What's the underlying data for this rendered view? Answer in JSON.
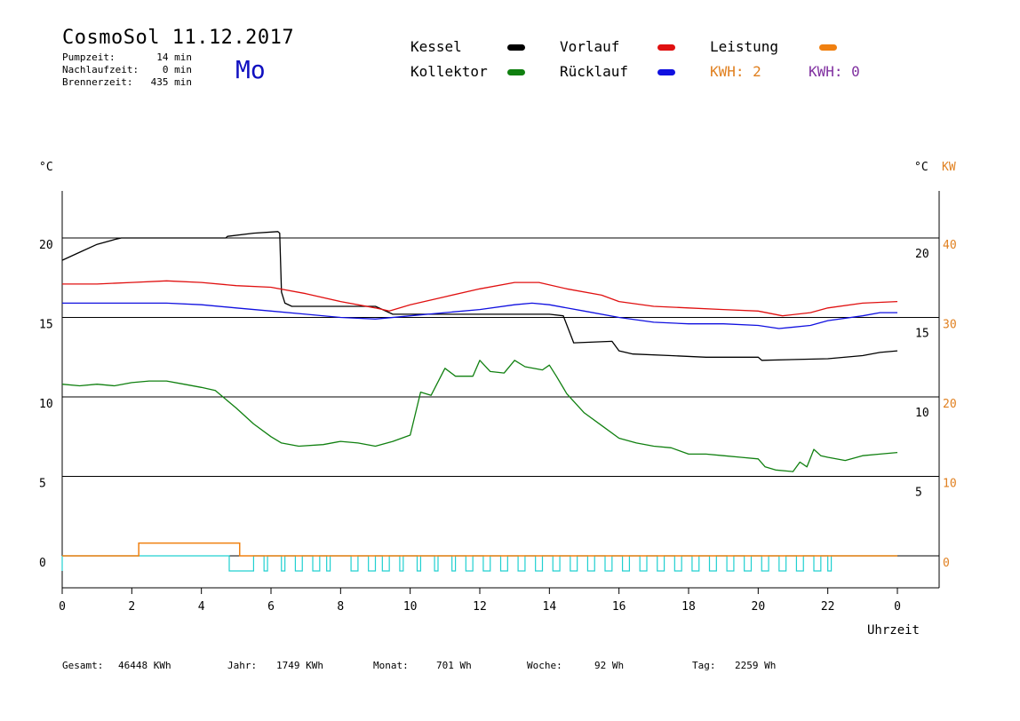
{
  "header": {
    "title": "CosmoSol 11.12.2017",
    "day": "Mo",
    "stats": [
      {
        "label": "Pumpzeit:",
        "value": "14 min"
      },
      {
        "label": "Nachlaufzeit:",
        "value": "0 min"
      },
      {
        "label": "Brennerzeit:",
        "value": "435 min"
      }
    ]
  },
  "legend": {
    "items": [
      {
        "label": "Kessel",
        "color": "#000000"
      },
      {
        "label": "Vorlauf",
        "color": "#e01010"
      },
      {
        "label": "Leistung",
        "color": "#f08010"
      },
      {
        "label": "Kollektor",
        "color": "#108010"
      },
      {
        "label": "Rücklauf",
        "color": "#1010e0"
      }
    ],
    "kwh_orange": "KWH: 2",
    "kwh_purple": "KWH: 0",
    "kwh_orange_color": "#e08020",
    "kwh_purple_color": "#8030a0"
  },
  "footer": {
    "gesamt_label": "Gesamt:",
    "gesamt_value": "46448 KWh",
    "jahr_label": "Jahr:",
    "jahr_value": "1749 KWh",
    "monat_label": "Monat:",
    "monat_value": "701 Wh",
    "woche_label": "Woche:",
    "woche_value": "92 Wh",
    "tag_label": "Tag:",
    "tag_value": "2259 Wh"
  },
  "chart_data": {
    "type": "line",
    "xlabel": "Uhrzeit",
    "left_unit": "°C",
    "right_unit_c": "°C",
    "right_unit_kw": "KW",
    "x_ticks": [
      "0",
      "2",
      "4",
      "6",
      "8",
      "10",
      "12",
      "14",
      "16",
      "18",
      "20",
      "22",
      "0"
    ],
    "xlim": [
      0,
      24
    ],
    "left_axis": {
      "ylim": [
        0,
        22
      ],
      "ticks": [
        0,
        5,
        10,
        15,
        20
      ]
    },
    "right_axis_c": {
      "ticks": [
        5,
        10,
        15,
        20
      ]
    },
    "right_axis_kw": {
      "ticks": [
        0,
        10,
        20,
        30,
        40
      ]
    },
    "grid_lines_y": [
      5,
      10,
      15,
      20
    ],
    "series": [
      {
        "name": "Kessel",
        "color": "#000000",
        "points": [
          [
            0,
            18.6
          ],
          [
            0.5,
            19.1
          ],
          [
            1,
            19.6
          ],
          [
            1.5,
            19.9
          ],
          [
            1.7,
            20
          ],
          [
            4.7,
            20
          ],
          [
            4.75,
            20.1
          ],
          [
            5.5,
            20.3
          ],
          [
            6.2,
            20.4
          ],
          [
            6.25,
            20.3
          ],
          [
            6.3,
            16.6
          ],
          [
            6.4,
            15.9
          ],
          [
            6.6,
            15.7
          ],
          [
            9,
            15.7
          ],
          [
            9.5,
            15.2
          ],
          [
            14,
            15.2
          ],
          [
            14.4,
            15.1
          ],
          [
            14.7,
            13.4
          ],
          [
            15.8,
            13.5
          ],
          [
            16,
            12.9
          ],
          [
            16.4,
            12.7
          ],
          [
            17.5,
            12.6
          ],
          [
            18.5,
            12.5
          ],
          [
            20,
            12.5
          ],
          [
            20.1,
            12.3
          ],
          [
            22,
            12.4
          ],
          [
            23,
            12.6
          ],
          [
            23.5,
            12.8
          ],
          [
            24,
            12.9
          ]
        ]
      },
      {
        "name": "Vorlauf",
        "color": "#e01010",
        "points": [
          [
            0,
            17.1
          ],
          [
            1,
            17.1
          ],
          [
            2,
            17.2
          ],
          [
            3,
            17.3
          ],
          [
            4,
            17.2
          ],
          [
            5,
            17
          ],
          [
            6,
            16.9
          ],
          [
            7,
            16.5
          ],
          [
            8,
            16
          ],
          [
            9,
            15.6
          ],
          [
            9.4,
            15.4
          ],
          [
            10,
            15.8
          ],
          [
            11,
            16.3
          ],
          [
            12,
            16.8
          ],
          [
            13,
            17.2
          ],
          [
            13.7,
            17.2
          ],
          [
            14.5,
            16.8
          ],
          [
            15.5,
            16.4
          ],
          [
            16,
            16
          ],
          [
            17,
            15.7
          ],
          [
            18,
            15.6
          ],
          [
            19,
            15.5
          ],
          [
            20,
            15.4
          ],
          [
            20.7,
            15.1
          ],
          [
            21.5,
            15.3
          ],
          [
            22,
            15.6
          ],
          [
            23,
            15.9
          ],
          [
            24,
            16
          ]
        ]
      },
      {
        "name": "Rücklauf",
        "color": "#1010e0",
        "points": [
          [
            0,
            15.9
          ],
          [
            1,
            15.9
          ],
          [
            2,
            15.9
          ],
          [
            3,
            15.9
          ],
          [
            4,
            15.8
          ],
          [
            5,
            15.6
          ],
          [
            6,
            15.4
          ],
          [
            7,
            15.2
          ],
          [
            8,
            15
          ],
          [
            9,
            14.9
          ],
          [
            10,
            15.1
          ],
          [
            11,
            15.3
          ],
          [
            12,
            15.5
          ],
          [
            13,
            15.8
          ],
          [
            13.5,
            15.9
          ],
          [
            14,
            15.8
          ],
          [
            15,
            15.4
          ],
          [
            16,
            15
          ],
          [
            17,
            14.7
          ],
          [
            18,
            14.6
          ],
          [
            19,
            14.6
          ],
          [
            20,
            14.5
          ],
          [
            20.6,
            14.3
          ],
          [
            21.5,
            14.5
          ],
          [
            22,
            14.8
          ],
          [
            23,
            15.1
          ],
          [
            23.5,
            15.3
          ],
          [
            24,
            15.3
          ]
        ]
      },
      {
        "name": "Kollektor",
        "color": "#108010",
        "points": [
          [
            0,
            10.8
          ],
          [
            0.5,
            10.7
          ],
          [
            1,
            10.8
          ],
          [
            1.5,
            10.7
          ],
          [
            2,
            10.9
          ],
          [
            2.5,
            11
          ],
          [
            3,
            11
          ],
          [
            3.5,
            10.8
          ],
          [
            4,
            10.6
          ],
          [
            4.4,
            10.4
          ],
          [
            5,
            9.3
          ],
          [
            5.5,
            8.3
          ],
          [
            6,
            7.5
          ],
          [
            6.3,
            7.1
          ],
          [
            6.8,
            6.9
          ],
          [
            7.5,
            7
          ],
          [
            8,
            7.2
          ],
          [
            8.5,
            7.1
          ],
          [
            9,
            6.9
          ],
          [
            9.5,
            7.2
          ],
          [
            10,
            7.6
          ],
          [
            10.3,
            10.3
          ],
          [
            10.6,
            10.1
          ],
          [
            11,
            11.8
          ],
          [
            11.3,
            11.3
          ],
          [
            11.8,
            11.3
          ],
          [
            12,
            12.3
          ],
          [
            12.3,
            11.6
          ],
          [
            12.7,
            11.5
          ],
          [
            13,
            12.3
          ],
          [
            13.3,
            11.9
          ],
          [
            13.8,
            11.7
          ],
          [
            14,
            12
          ],
          [
            14.2,
            11.3
          ],
          [
            14.5,
            10.2
          ],
          [
            15,
            9
          ],
          [
            15.5,
            8.2
          ],
          [
            16,
            7.4
          ],
          [
            16.5,
            7.1
          ],
          [
            17,
            6.9
          ],
          [
            17.5,
            6.8
          ],
          [
            18,
            6.4
          ],
          [
            18.5,
            6.4
          ],
          [
            19,
            6.3
          ],
          [
            19.5,
            6.2
          ],
          [
            20,
            6.1
          ],
          [
            20.2,
            5.6
          ],
          [
            20.5,
            5.4
          ],
          [
            21,
            5.3
          ],
          [
            21.2,
            5.9
          ],
          [
            21.4,
            5.6
          ],
          [
            21.6,
            6.7
          ],
          [
            21.8,
            6.3
          ],
          [
            22,
            6.2
          ],
          [
            22.5,
            6
          ],
          [
            23,
            6.3
          ],
          [
            23.5,
            6.4
          ],
          [
            24,
            6.5
          ]
        ]
      }
    ],
    "leistung_kw": [
      [
        0,
        0
      ],
      [
        2.2,
        0
      ],
      [
        2.2,
        0.8
      ],
      [
        5.1,
        0.8
      ],
      [
        5.1,
        0
      ],
      [
        24,
        0
      ]
    ],
    "pump_on_intervals": [
      [
        4.8,
        5.5
      ],
      [
        5.8,
        5.9
      ],
      [
        6.3,
        6.4
      ],
      [
        6.7,
        6.9
      ],
      [
        7.2,
        7.4
      ],
      [
        7.6,
        7.7
      ],
      [
        8.3,
        8.5
      ],
      [
        8.8,
        9
      ],
      [
        9.2,
        9.4
      ],
      [
        9.7,
        9.8
      ],
      [
        10.2,
        10.3
      ],
      [
        10.7,
        10.8
      ],
      [
        11.2,
        11.3
      ],
      [
        11.6,
        11.8
      ],
      [
        12.1,
        12.3
      ],
      [
        12.6,
        12.8
      ],
      [
        13.1,
        13.3
      ],
      [
        13.6,
        13.8
      ],
      [
        14.1,
        14.3
      ],
      [
        14.6,
        14.8
      ],
      [
        15.1,
        15.3
      ],
      [
        15.6,
        15.8
      ],
      [
        16.1,
        16.3
      ],
      [
        16.6,
        16.8
      ],
      [
        17.1,
        17.3
      ],
      [
        17.6,
        17.8
      ],
      [
        18.1,
        18.3
      ],
      [
        18.6,
        18.8
      ],
      [
        19.1,
        19.3
      ],
      [
        19.6,
        19.8
      ],
      [
        20.1,
        20.3
      ],
      [
        20.6,
        20.8
      ],
      [
        21.1,
        21.3
      ],
      [
        21.6,
        21.8
      ],
      [
        22,
        22.1
      ]
    ]
  }
}
